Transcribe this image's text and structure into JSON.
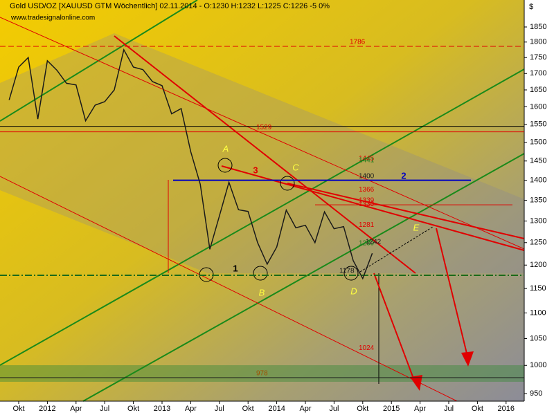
{
  "chart_data": {
    "type": "line",
    "title": "Gold USD/OZ [XAUUSD GTM  Wöchentlich] 02.11.2014 - O:1230 H:1232 L:1225 C:1226 -5 0%",
    "subtitle": "www.tradesignalonline.com",
    "y_axis_label": "$",
    "log_scale": true,
    "ylim": [
      937,
      1943
    ],
    "yticks": [
      950,
      1000,
      1050,
      1100,
      1150,
      1200,
      1250,
      1300,
      1350,
      1400,
      1450,
      1500,
      1550,
      1600,
      1650,
      1700,
      1750,
      1800,
      1850
    ],
    "xticks": [
      {
        "value": "2011-10",
        "label": "Okt"
      },
      {
        "value": "2012-01",
        "label": "2012"
      },
      {
        "value": "2012-04",
        "label": "Apr"
      },
      {
        "value": "2012-07",
        "label": "Jul"
      },
      {
        "value": "2012-10",
        "label": "Okt"
      },
      {
        "value": "2013-01",
        "label": "2013"
      },
      {
        "value": "2013-04",
        "label": "Apr"
      },
      {
        "value": "2013-07",
        "label": "Jul"
      },
      {
        "value": "2013-10",
        "label": "Okt"
      },
      {
        "value": "2014-01",
        "label": "2014"
      },
      {
        "value": "2014-04",
        "label": "Apr"
      },
      {
        "value": "2014-07",
        "label": "Jul"
      },
      {
        "value": "2014-10",
        "label": "Okt"
      },
      {
        "value": "2015-01",
        "label": "2015"
      },
      {
        "value": "2015-04",
        "label": "Apr"
      },
      {
        "value": "2015-07",
        "label": "Jul"
      },
      {
        "value": "2015-10",
        "label": "Okt"
      },
      {
        "value": "2016-01",
        "label": "2016"
      }
    ],
    "x": [
      "2011-09",
      "2011-10",
      "2011-11",
      "2011-12",
      "2012-01",
      "2012-02",
      "2012-03",
      "2012-04",
      "2012-05",
      "2012-06",
      "2012-07",
      "2012-08",
      "2012-09",
      "2012-10",
      "2012-11",
      "2012-12",
      "2013-01",
      "2013-02",
      "2013-03",
      "2013-04",
      "2013-05",
      "2013-06",
      "2013-07",
      "2013-08",
      "2013-09",
      "2013-10",
      "2013-11",
      "2013-12",
      "2014-01",
      "2014-02",
      "2014-03",
      "2014-04",
      "2014-05",
      "2014-06",
      "2014-07",
      "2014-08",
      "2014-09",
      "2014-10",
      "2014-11"
    ],
    "series": [
      {
        "color": "#1a1a1a",
        "values": [
          1620,
          1720,
          1750,
          1565,
          1740,
          1710,
          1670,
          1665,
          1560,
          1605,
          1615,
          1650,
          1775,
          1720,
          1712,
          1675,
          1663,
          1580,
          1595,
          1475,
          1390,
          1235,
          1312,
          1395,
          1327,
          1323,
          1250,
          1202,
          1240,
          1326,
          1284,
          1290,
          1250,
          1322,
          1282,
          1287,
          1210,
          1171,
          1226
        ]
      }
    ],
    "levels": [
      {
        "value": 1786,
        "color": "#e00000"
      },
      {
        "value": 1529,
        "color": "#e00000"
      },
      {
        "value": 1445,
        "color": "#e00000"
      },
      {
        "value": 1441,
        "color": "#1a7a1a"
      },
      {
        "value": 1400,
        "color": "#1a1a1a"
      },
      {
        "value": 1366,
        "color": "#e00000"
      },
      {
        "value": 1339,
        "color": "#e00000"
      },
      {
        "value": 1330,
        "color": "#e00000"
      },
      {
        "value": 1281,
        "color": "#e00000"
      },
      {
        "value": 1239,
        "color": "#1a7a1a"
      },
      {
        "value": 1242,
        "color": "#1a1a1a"
      },
      {
        "value": 1178,
        "color": "#1a1a1a"
      },
      {
        "value": 1024,
        "color": "#e00000"
      },
      {
        "value": 978,
        "color": "#a05000"
      }
    ],
    "annotations": [
      {
        "text": "A",
        "color": "#ffff40"
      },
      {
        "text": "B",
        "color": "#ffff40"
      },
      {
        "text": "C",
        "color": "#ffff40"
      },
      {
        "text": "D",
        "color": "#ffff40"
      },
      {
        "text": "E",
        "color": "#ffff40"
      },
      {
        "text": "1",
        "color": "#000000"
      },
      {
        "text": "2",
        "color": "#0000c0"
      },
      {
        "text": "3",
        "color": "#e00000"
      }
    ]
  }
}
